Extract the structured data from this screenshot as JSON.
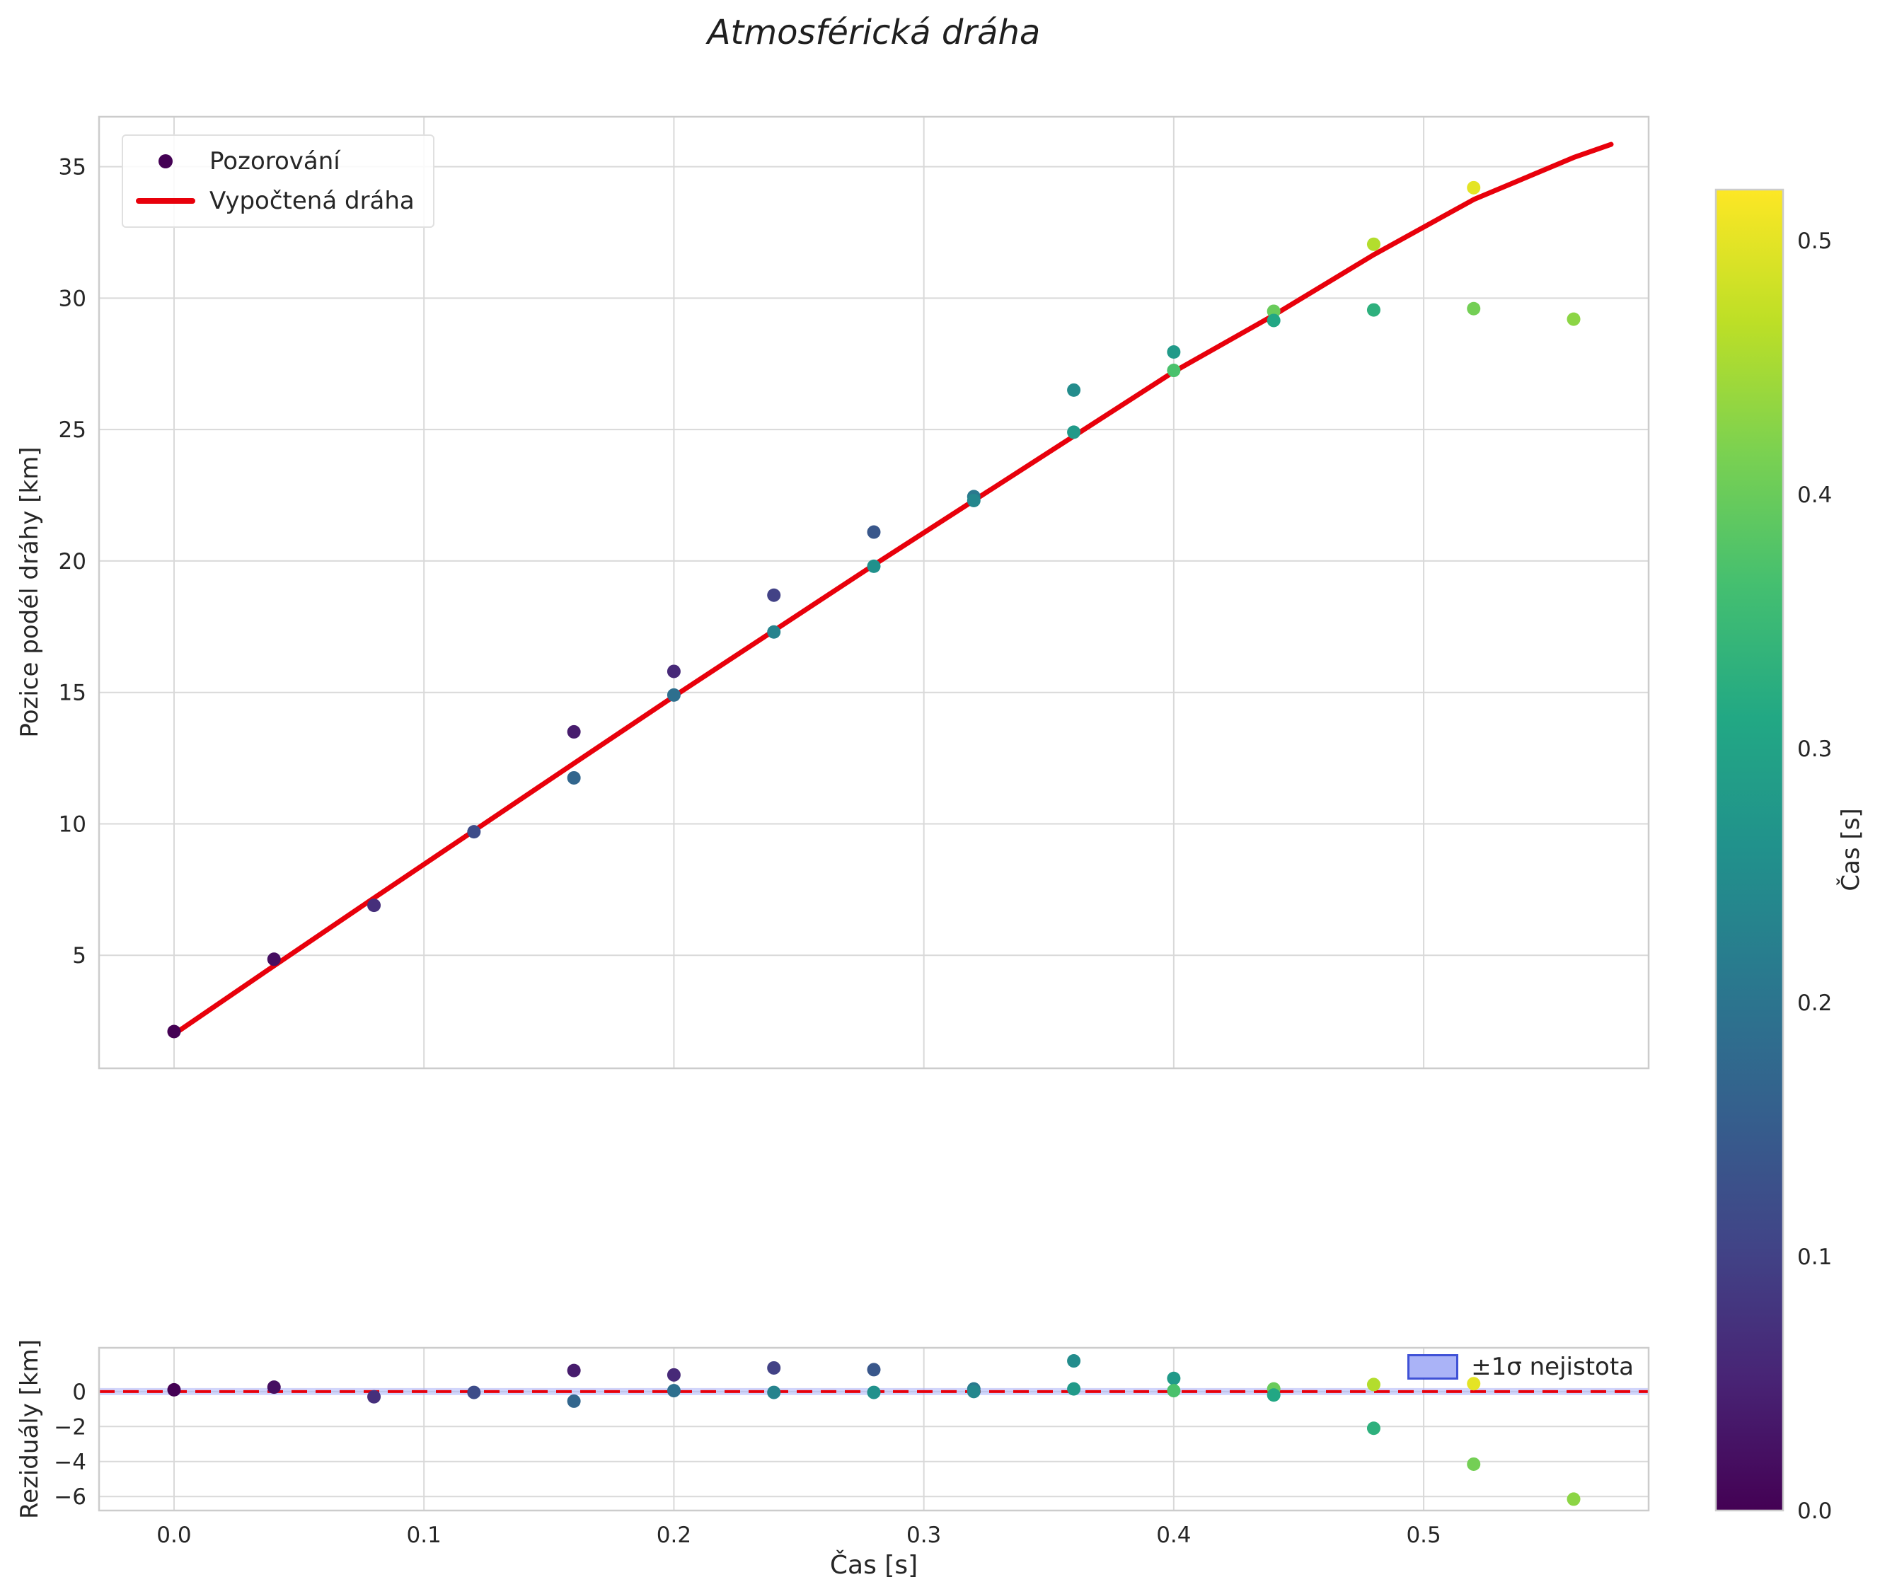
{
  "title": "Atmosférická dráha",
  "colors": {
    "fit_line": "#e8000b",
    "grid": "#d9d9d9",
    "spine": "#cccccc",
    "text": "#262626",
    "band_fill": "#aab3f7",
    "band_edge": "#3f51d6",
    "legend_marker": "#440154",
    "background": "#ffffff"
  },
  "chart_data": {
    "type": "scatter",
    "title": "Atmosférická dráha",
    "xlabel": "Čas [s]",
    "x_ticks": [
      "0.0",
      "0.1",
      "0.2",
      "0.3",
      "0.4",
      "0.5"
    ],
    "x_tick_values": [
      0.0,
      0.1,
      0.2,
      0.3,
      0.4,
      0.5
    ],
    "xlim": [
      -0.03,
      0.59
    ],
    "grid": true,
    "panels": {
      "trajectory": {
        "ylabel": "Pozice podél dráhy [km]",
        "y_ticks": [
          "5",
          "10",
          "15",
          "20",
          "25",
          "30",
          "35"
        ],
        "y_tick_values": [
          5,
          10,
          15,
          20,
          25,
          30,
          35
        ],
        "ylim": [
          0.7,
          36.9
        ],
        "legend": [
          {
            "label": "Pozorování",
            "type": "marker"
          },
          {
            "label": "Vypočtená dráha",
            "type": "line"
          }
        ],
        "observations": [
          {
            "t": 0.0,
            "s": 2.1,
            "c": 0.0
          },
          {
            "t": 0.04,
            "s": 4.85,
            "c": 0.02
          },
          {
            "t": 0.08,
            "s": 6.9,
            "c": 0.07
          },
          {
            "t": 0.12,
            "s": 9.7,
            "c": 0.12
          },
          {
            "t": 0.16,
            "s": 13.5,
            "c": 0.04
          },
          {
            "t": 0.16,
            "s": 11.75,
            "c": 0.17
          },
          {
            "t": 0.2,
            "s": 15.8,
            "c": 0.06
          },
          {
            "t": 0.2,
            "s": 14.9,
            "c": 0.19
          },
          {
            "t": 0.24,
            "s": 18.7,
            "c": 0.1
          },
          {
            "t": 0.24,
            "s": 17.3,
            "c": 0.23
          },
          {
            "t": 0.28,
            "s": 21.1,
            "c": 0.14
          },
          {
            "t": 0.28,
            "s": 19.8,
            "c": 0.26
          },
          {
            "t": 0.32,
            "s": 22.45,
            "c": 0.21
          },
          {
            "t": 0.32,
            "s": 22.3,
            "c": 0.24
          },
          {
            "t": 0.36,
            "s": 26.5,
            "c": 0.25
          },
          {
            "t": 0.36,
            "s": 24.9,
            "c": 0.28
          },
          {
            "t": 0.4,
            "s": 27.95,
            "c": 0.28
          },
          {
            "t": 0.4,
            "s": 27.25,
            "c": 0.37
          },
          {
            "t": 0.44,
            "s": 29.5,
            "c": 0.4
          },
          {
            "t": 0.44,
            "s": 29.15,
            "c": 0.31
          },
          {
            "t": 0.48,
            "s": 32.05,
            "c": 0.46
          },
          {
            "t": 0.48,
            "s": 29.55,
            "c": 0.33
          },
          {
            "t": 0.52,
            "s": 34.2,
            "c": 0.5
          },
          {
            "t": 0.52,
            "s": 29.6,
            "c": 0.41
          },
          {
            "t": 0.56,
            "s": 29.2,
            "c": 0.43
          }
        ],
        "fit_line": [
          [
            0.0,
            2.0
          ],
          [
            0.04,
            4.6
          ],
          [
            0.08,
            7.18
          ],
          [
            0.12,
            9.74
          ],
          [
            0.16,
            12.3
          ],
          [
            0.2,
            14.85
          ],
          [
            0.24,
            17.35
          ],
          [
            0.28,
            19.85
          ],
          [
            0.32,
            22.3
          ],
          [
            0.36,
            24.75
          ],
          [
            0.4,
            27.2
          ],
          [
            0.44,
            29.35
          ],
          [
            0.48,
            31.65
          ],
          [
            0.52,
            33.75
          ],
          [
            0.56,
            35.35
          ],
          [
            0.575,
            35.85
          ]
        ]
      },
      "residuals": {
        "ylabel": "Reziduály [km]",
        "y_ticks": [
          "0",
          "−2",
          "−4",
          "−6"
        ],
        "y_tick_values": [
          0,
          -2,
          -4,
          -6
        ],
        "ylim": [
          -6.8,
          2.5
        ],
        "zero_line": {
          "style": "dashed"
        },
        "band": {
          "label": "±1σ nejistota",
          "half_width": 0.2
        },
        "points": [
          {
            "t": 0.0,
            "r": 0.1,
            "c": 0.0
          },
          {
            "t": 0.04,
            "r": 0.25,
            "c": 0.02
          },
          {
            "t": 0.08,
            "r": -0.3,
            "c": 0.07
          },
          {
            "t": 0.12,
            "r": -0.05,
            "c": 0.12
          },
          {
            "t": 0.16,
            "r": 1.2,
            "c": 0.04
          },
          {
            "t": 0.16,
            "r": -0.55,
            "c": 0.17
          },
          {
            "t": 0.2,
            "r": 0.95,
            "c": 0.06
          },
          {
            "t": 0.2,
            "r": 0.05,
            "c": 0.19
          },
          {
            "t": 0.24,
            "r": 1.35,
            "c": 0.1
          },
          {
            "t": 0.24,
            "r": -0.05,
            "c": 0.23
          },
          {
            "t": 0.28,
            "r": 1.25,
            "c": 0.14
          },
          {
            "t": 0.28,
            "r": -0.05,
            "c": 0.26
          },
          {
            "t": 0.32,
            "r": 0.15,
            "c": 0.21
          },
          {
            "t": 0.32,
            "r": 0.0,
            "c": 0.24
          },
          {
            "t": 0.36,
            "r": 1.75,
            "c": 0.25
          },
          {
            "t": 0.36,
            "r": 0.15,
            "c": 0.28
          },
          {
            "t": 0.4,
            "r": 0.75,
            "c": 0.28
          },
          {
            "t": 0.4,
            "r": 0.05,
            "c": 0.37
          },
          {
            "t": 0.44,
            "r": 0.15,
            "c": 0.4
          },
          {
            "t": 0.44,
            "r": -0.2,
            "c": 0.31
          },
          {
            "t": 0.48,
            "r": 0.4,
            "c": 0.46
          },
          {
            "t": 0.48,
            "r": -2.1,
            "c": 0.33
          },
          {
            "t": 0.52,
            "r": 0.45,
            "c": 0.5
          },
          {
            "t": 0.52,
            "r": -4.15,
            "c": 0.41
          },
          {
            "t": 0.56,
            "r": -6.15,
            "c": 0.43
          }
        ]
      }
    },
    "colorbar": {
      "label": "Čas [s]",
      "min": 0,
      "max": 0.52,
      "ticks": [
        "0.0",
        "0.1",
        "0.2",
        "0.3",
        "0.4",
        "0.5"
      ],
      "tick_values": [
        0.0,
        0.1,
        0.2,
        0.3,
        0.4,
        0.5
      ],
      "colormap": "viridis"
    },
    "colormap_stops": [
      [
        0.0,
        "#440154"
      ],
      [
        0.1,
        "#482475"
      ],
      [
        0.2,
        "#414487"
      ],
      [
        0.3,
        "#355f8d"
      ],
      [
        0.4,
        "#2a788e"
      ],
      [
        0.5,
        "#21918c"
      ],
      [
        0.6,
        "#22a884"
      ],
      [
        0.7,
        "#44bf70"
      ],
      [
        0.8,
        "#7ad151"
      ],
      [
        0.9,
        "#bddf26"
      ],
      [
        1.0,
        "#fde725"
      ]
    ]
  }
}
